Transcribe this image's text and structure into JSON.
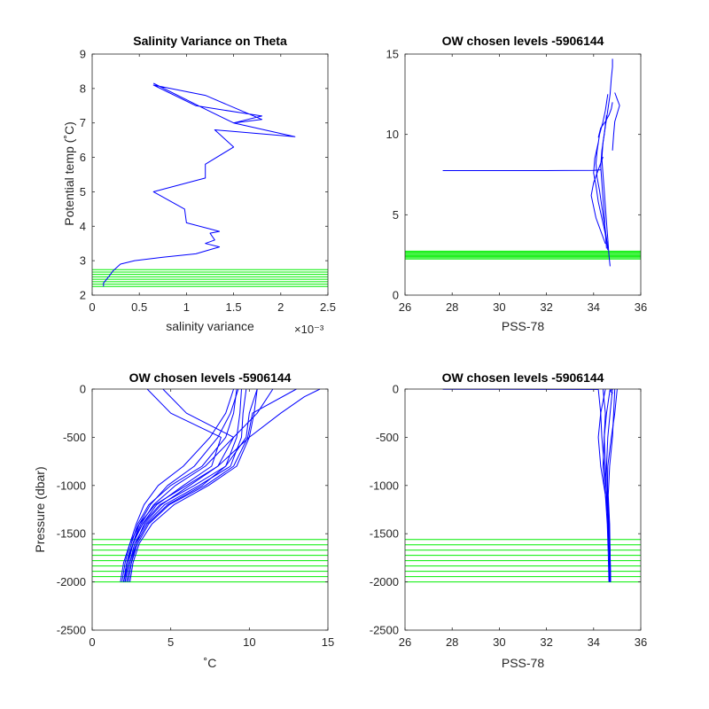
{
  "figure": {
    "background": "#ffffff"
  },
  "colors": {
    "profiles": "#0000ff",
    "levels": "#00ee00",
    "axes": "#262626"
  },
  "chart_data": [
    {
      "type": "line",
      "title": "Salinity Variance on Theta",
      "xlabel": "salinity variance",
      "ylabel": "Potential temp (˚C)",
      "xlim": [
        0,
        2.5
      ],
      "ylim": [
        2,
        9
      ],
      "x_exponent_label": "×10⁻³",
      "xticks": [
        0,
        0.5,
        1,
        1.5,
        2,
        2.5
      ],
      "xtick_labels": [
        "0",
        "0.5",
        "1",
        "1.5",
        "2",
        "2.5"
      ],
      "yticks": [
        2,
        3,
        4,
        5,
        6,
        7,
        8,
        9
      ],
      "ytick_labels": [
        "2",
        "3",
        "4",
        "5",
        "6",
        "7",
        "8",
        "9"
      ],
      "series": [
        {
          "x": [
            0.12,
            0.12,
            0.15,
            0.18,
            0.22,
            0.3,
            0.45,
            0.75,
            1.1,
            1.35,
            1.2,
            1.3,
            1.25,
            1.35,
            1.0,
            0.98,
            0.65,
            1.2,
            1.2,
            1.5,
            1.3,
            2.15,
            1.5,
            1.8,
            1.1,
            0.65,
            1.2,
            1.8,
            1.5,
            1.2,
            0.65
          ],
          "y": [
            2.25,
            2.35,
            2.45,
            2.55,
            2.7,
            2.9,
            3.0,
            3.1,
            3.2,
            3.4,
            3.5,
            3.6,
            3.8,
            3.85,
            4.1,
            4.5,
            5.0,
            5.4,
            5.8,
            6.3,
            6.8,
            6.6,
            7.0,
            7.2,
            7.5,
            8.1,
            7.8,
            7.1,
            7.0,
            7.4,
            8.15
          ]
        }
      ],
      "levels": [
        2.25,
        2.32,
        2.39,
        2.46,
        2.53,
        2.6,
        2.67,
        2.74
      ]
    },
    {
      "type": "line",
      "title": "OW chosen levels -5906144",
      "xlabel": "PSS-78",
      "ylabel": "",
      "xlim": [
        26,
        36
      ],
      "ylim": [
        0,
        15
      ],
      "xticks": [
        26,
        28,
        30,
        32,
        34,
        36
      ],
      "xtick_labels": [
        "26",
        "28",
        "30",
        "32",
        "34",
        "36"
      ],
      "yticks": [
        0,
        5,
        10,
        15
      ],
      "ytick_labels": [
        "0",
        "5",
        "10",
        "15"
      ],
      "series": [
        {
          "x": [
            34.7,
            34.65,
            34.6,
            34.55,
            34.5,
            34.45,
            34.4,
            34.35,
            34.4,
            34.5,
            34.6,
            34.7,
            34.75,
            34.8,
            34.8
          ],
          "y": [
            1.8,
            2.5,
            3.5,
            4.5,
            5.5,
            6.5,
            7.5,
            8.5,
            9.5,
            10.5,
            11.5,
            12.5,
            13.5,
            14.2,
            14.7
          ]
        },
        {
          "x": [
            34.6,
            34.55,
            34.45,
            34.35,
            34.25,
            34.15,
            34.1,
            34.15,
            34.25,
            34.4,
            34.5,
            34.6
          ],
          "y": [
            2.8,
            3.5,
            4.5,
            5.5,
            6.5,
            7.3,
            8.2,
            9.0,
            10.0,
            10.8,
            11.5,
            12.5
          ]
        },
        {
          "x": [
            34.55,
            34.5,
            34.45,
            34.4,
            34.35,
            34.3,
            34.35,
            34.45,
            34.55
          ],
          "y": [
            2.9,
            3.8,
            5.0,
            6.0,
            7.0,
            8.0,
            9.0,
            10.0,
            11.2
          ]
        },
        {
          "x": [
            34.6,
            34.5,
            34.35,
            34.2,
            34.1,
            34.0,
            34.05,
            34.2
          ],
          "y": [
            3.0,
            3.8,
            4.8,
            5.8,
            6.8,
            7.6,
            8.5,
            9.5
          ]
        },
        {
          "x": [
            34.5,
            34.3,
            34.1,
            34.0,
            33.9,
            34.0,
            34.2,
            34.4
          ],
          "y": [
            3.2,
            4.0,
            4.8,
            5.5,
            6.2,
            7.0,
            7.8,
            8.6
          ]
        },
        {
          "x": [
            34.8,
            34.85,
            34.9,
            35.0,
            35.1,
            35.0,
            34.9
          ],
          "y": [
            9.0,
            10.0,
            10.8,
            11.3,
            11.8,
            12.2,
            12.6
          ]
        },
        {
          "x": [
            34.2,
            34.3,
            34.5,
            34.65,
            34.75,
            34.8
          ],
          "y": [
            9.8,
            10.4,
            10.8,
            11.2,
            11.6,
            12.0
          ]
        },
        {
          "x": [
            27.6,
            32.0,
            34.0,
            34.3
          ],
          "y": [
            7.75,
            7.75,
            7.76,
            7.8
          ]
        }
      ],
      "levels": [
        2.25,
        2.32,
        2.39,
        2.46,
        2.53,
        2.6,
        2.67,
        2.74
      ]
    },
    {
      "type": "line",
      "title": "OW chosen levels -5906144",
      "xlabel": "˚C",
      "ylabel": "Pressure (dbar)",
      "xlim": [
        0,
        15
      ],
      "ylim": [
        -2500,
        0
      ],
      "xticks": [
        0,
        5,
        10,
        15
      ],
      "xtick_labels": [
        "0",
        "5",
        "10",
        "15"
      ],
      "yticks": [
        -2500,
        -2000,
        -1500,
        -1000,
        -500,
        0
      ],
      "ytick_labels": [
        "-2500",
        "-2000",
        "-1500",
        "-1000",
        "-500",
        "0"
      ],
      "series": [
        {
          "x": [
            1.8,
            2.0,
            2.4,
            3.0,
            4.0,
            6.0,
            8.0,
            10.0,
            12.0,
            13.5,
            14.5
          ],
          "y": [
            -2000,
            -1800,
            -1600,
            -1400,
            -1200,
            -1000,
            -800,
            -500,
            -250,
            -80,
            0
          ]
        },
        {
          "x": [
            2.0,
            2.2,
            2.6,
            3.2,
            4.3,
            6.5,
            8.5,
            9.8,
            10.0,
            10.5
          ],
          "y": [
            -2000,
            -1800,
            -1600,
            -1400,
            -1200,
            -1000,
            -800,
            -500,
            -250,
            0
          ]
        },
        {
          "x": [
            2.2,
            2.4,
            2.7,
            3.4,
            4.6,
            6.8,
            8.8,
            9.5,
            9.6,
            9.8
          ],
          "y": [
            -2000,
            -1800,
            -1600,
            -1400,
            -1200,
            -1000,
            -800,
            -500,
            -250,
            0
          ]
        },
        {
          "x": [
            2.0,
            2.2,
            2.5,
            2.9,
            3.6,
            5.0,
            7.0,
            8.5,
            9.0,
            9.2
          ],
          "y": [
            -2000,
            -1800,
            -1600,
            -1400,
            -1200,
            -1000,
            -800,
            -500,
            -250,
            0
          ]
        },
        {
          "x": [
            2.1,
            2.3,
            2.6,
            3.1,
            3.9,
            5.3,
            7.2,
            9.0,
            10.5,
            11.5
          ],
          "y": [
            -2000,
            -1800,
            -1600,
            -1400,
            -1200,
            -1000,
            -800,
            -500,
            -250,
            0
          ]
        },
        {
          "x": [
            2.3,
            2.5,
            2.8,
            3.5,
            4.8,
            7.0,
            8.5,
            9.2,
            9.4,
            9.5
          ],
          "y": [
            -2000,
            -1800,
            -1600,
            -1400,
            -1200,
            -1000,
            -800,
            -500,
            -250,
            0
          ]
        },
        {
          "x": [
            1.9,
            2.1,
            2.4,
            2.8,
            3.3,
            4.2,
            5.8,
            7.5,
            8.5,
            9.0
          ],
          "y": [
            -2000,
            -1800,
            -1600,
            -1400,
            -1200,
            -1000,
            -800,
            -500,
            -250,
            0
          ]
        },
        {
          "x": [
            2.2,
            2.4,
            2.8,
            3.3,
            4.4,
            6.2,
            8.0,
            9.0,
            6.0,
            4.5
          ],
          "y": [
            -2000,
            -1800,
            -1600,
            -1400,
            -1200,
            -1000,
            -800,
            -500,
            -250,
            0
          ]
        },
        {
          "x": [
            2.0,
            2.3,
            2.6,
            3.2,
            4.1,
            5.8,
            7.6,
            8.2,
            5.0,
            3.5
          ],
          "y": [
            -2000,
            -1800,
            -1600,
            -1400,
            -1200,
            -1000,
            -800,
            -500,
            -250,
            0
          ]
        },
        {
          "x": [
            2.4,
            2.6,
            3.0,
            3.8,
            5.2,
            7.4,
            9.2,
            10.0,
            10.3,
            10.5
          ],
          "y": [
            -2000,
            -1800,
            -1600,
            -1400,
            -1200,
            -1000,
            -800,
            -500,
            -250,
            0
          ]
        },
        {
          "x": [
            2.1,
            2.3,
            2.6,
            3.0,
            3.7,
            4.8,
            6.5,
            8.0,
            8.8,
            9.3
          ],
          "y": [
            -2000,
            -1800,
            -1600,
            -1400,
            -1200,
            -1000,
            -800,
            -500,
            -250,
            0
          ]
        },
        {
          "x": [
            2.3,
            2.5,
            2.9,
            3.6,
            4.9,
            7.2,
            9.0,
            9.9,
            10.2,
            13.0
          ],
          "y": [
            -2000,
            -1800,
            -1600,
            -1400,
            -1200,
            -1000,
            -800,
            -500,
            -250,
            0
          ]
        }
      ],
      "levels": [
        -1560,
        -1615,
        -1670,
        -1725,
        -1780,
        -1835,
        -1890,
        -1945,
        -2000
      ]
    },
    {
      "type": "line",
      "title": "OW chosen levels -5906144",
      "xlabel": "PSS-78",
      "ylabel": "",
      "xlim": [
        26,
        36
      ],
      "ylim": [
        -2500,
        0
      ],
      "xticks": [
        26,
        28,
        30,
        32,
        34,
        36
      ],
      "xtick_labels": [
        "26",
        "28",
        "30",
        "32",
        "34",
        "36"
      ],
      "yticks": [
        -2500,
        -2000,
        -1500,
        -1000,
        -500,
        0
      ],
      "ytick_labels": [
        "-2500",
        "-2000",
        "-1500",
        "-1000",
        "-500",
        "0"
      ],
      "series": [
        {
          "x": [
            34.7,
            34.68,
            34.65,
            34.6,
            34.55,
            34.6,
            34.7,
            34.8
          ],
          "y": [
            -2000,
            -1700,
            -1400,
            -1100,
            -800,
            -500,
            -250,
            0
          ]
        },
        {
          "x": [
            34.72,
            34.7,
            34.65,
            34.5,
            34.4,
            34.45,
            34.5,
            34.4
          ],
          "y": [
            -2000,
            -1700,
            -1400,
            -1100,
            -800,
            -500,
            -250,
            0
          ]
        },
        {
          "x": [
            34.68,
            34.66,
            34.6,
            34.55,
            34.45,
            34.35,
            34.3,
            34.2
          ],
          "y": [
            -2000,
            -1700,
            -1400,
            -1100,
            -800,
            -500,
            -250,
            0
          ]
        },
        {
          "x": [
            34.7,
            34.67,
            34.62,
            34.58,
            34.6,
            34.75,
            34.9,
            35.0
          ],
          "y": [
            -2000,
            -1700,
            -1400,
            -1100,
            -800,
            -500,
            -250,
            0
          ]
        },
        {
          "x": [
            34.65,
            34.62,
            34.58,
            34.5,
            34.3,
            34.2,
            34.3,
            34.5
          ],
          "y": [
            -2000,
            -1700,
            -1400,
            -1100,
            -800,
            -500,
            -250,
            0
          ]
        },
        {
          "x": [
            34.72,
            34.7,
            34.68,
            34.62,
            34.68,
            34.8,
            34.85,
            34.9
          ],
          "y": [
            -2000,
            -1700,
            -1400,
            -1100,
            -800,
            -500,
            -250,
            0
          ]
        },
        {
          "x": [
            34.7,
            34.66,
            34.62,
            34.55,
            34.5,
            34.45,
            34.55,
            34.7
          ],
          "y": [
            -2000,
            -1700,
            -1400,
            -1100,
            -800,
            -500,
            -250,
            0
          ]
        },
        {
          "x": [
            34.75,
            34.8,
            34.7,
            34.8
          ],
          "y": [
            -60,
            -40,
            -20,
            0
          ]
        },
        {
          "x": [
            27.6,
            30.0,
            32.0,
            34.2
          ],
          "y": [
            -2,
            -3,
            -4,
            -5
          ]
        }
      ],
      "levels": [
        -1560,
        -1615,
        -1670,
        -1725,
        -1780,
        -1835,
        -1890,
        -1945,
        -2000
      ]
    }
  ]
}
